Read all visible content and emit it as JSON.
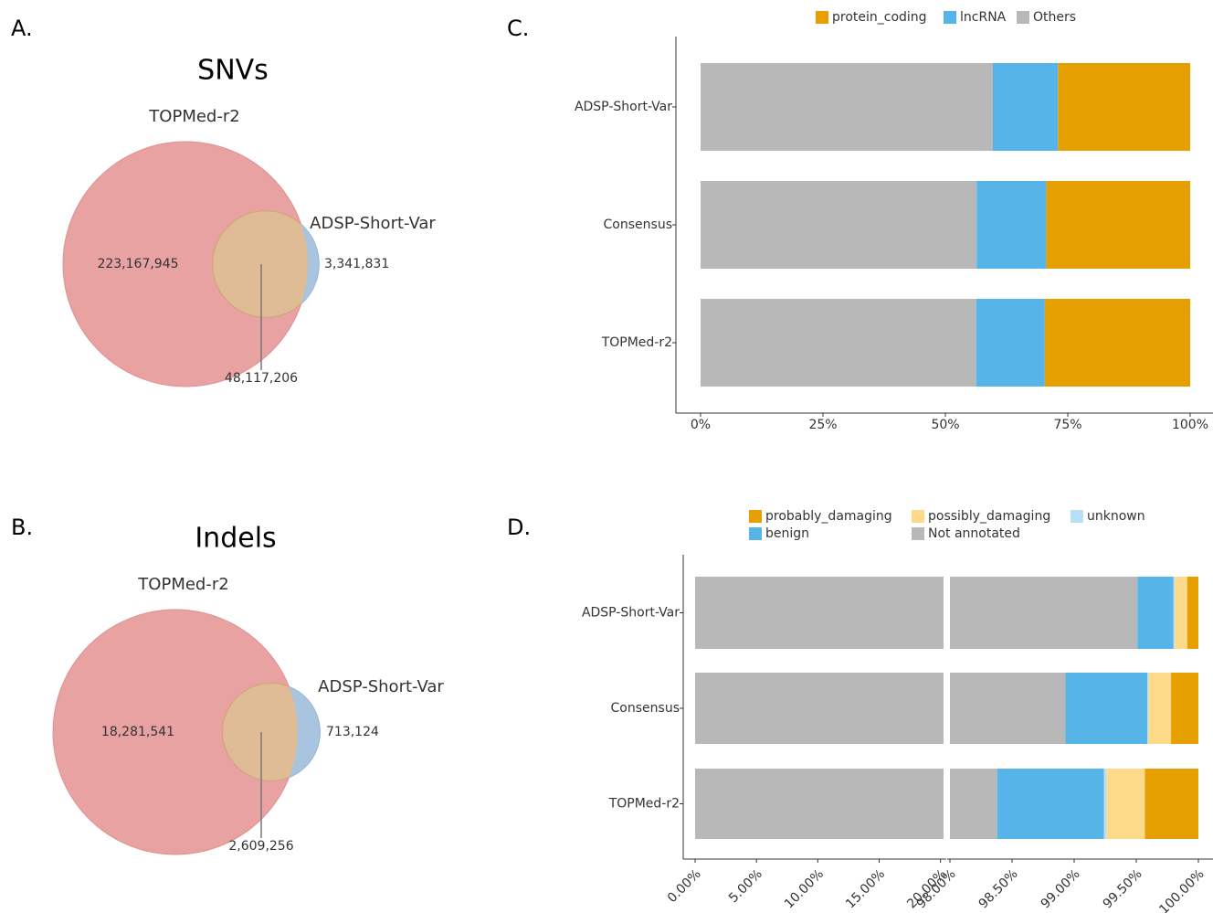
{
  "chart_data": [
    {
      "type": "venn",
      "panel": "A.",
      "title": "SNVs",
      "sets": [
        {
          "name": "TOPMed-r2",
          "color": "#d42a2a",
          "fill": "#e8a2a2"
        },
        {
          "name": "ADSP-Short-Var",
          "color": "#2e75b6",
          "fill": "#a9c4df"
        }
      ],
      "overlap_color": "#dfbb96",
      "values": [
        223167945,
        3341831,
        48117206
      ],
      "value_labels": [
        "223,167,945",
        "3,341,831",
        "48,117,206"
      ]
    },
    {
      "type": "venn",
      "panel": "B.",
      "title": "Indels",
      "sets": [
        {
          "name": "TOPMed-r2",
          "color": "#d42a2a",
          "fill": "#e8a2a2"
        },
        {
          "name": "ADSP-Short-Var",
          "color": "#2e75b6",
          "fill": "#a9c4df"
        }
      ],
      "overlap_color": "#dfbb96",
      "values": [
        18281541,
        713124,
        2609256
      ],
      "value_labels": [
        "18,281,541",
        "713,124",
        "2,609,256"
      ]
    },
    {
      "type": "stacked_barh",
      "panel": "C.",
      "categories": [
        "ADSP-Short-Var",
        "Consensus",
        "TOPMed-r2"
      ],
      "series": [
        {
          "name": "protein_coding",
          "color": "#e69f00",
          "values": [
            27.0,
            29.4,
            29.7
          ]
        },
        {
          "name": "lncRNA",
          "color": "#56b4e9",
          "values": [
            13.3,
            14.2,
            14.0
          ]
        },
        {
          "name": "Others",
          "color": "#b8b8b8",
          "values": [
            59.7,
            56.4,
            56.3
          ]
        }
      ],
      "xlim": [
        0,
        100
      ],
      "xticks": [
        {
          "value": 0,
          "label": "0%"
        },
        {
          "value": 25,
          "label": "25%"
        },
        {
          "value": 50,
          "label": "50%"
        },
        {
          "value": 75,
          "label": "75%"
        },
        {
          "value": 100,
          "label": "100%"
        }
      ]
    },
    {
      "type": "stacked_barh",
      "panel": "D.",
      "categories": [
        "ADSP-Short-Var",
        "Consensus",
        "TOPMed-r2"
      ],
      "series": [
        {
          "name": "probably_damaging",
          "color": "#e69f00",
          "values": [
            0.09,
            0.22,
            0.43
          ]
        },
        {
          "name": "possibly_damaging",
          "color": "#fdd98a",
          "values": [
            0.1,
            0.18,
            0.31
          ]
        },
        {
          "name": "unknown",
          "color": "#b9def5",
          "values": [
            0.01,
            0.01,
            0.02
          ]
        },
        {
          "name": "benign",
          "color": "#56b4e9",
          "values": [
            0.29,
            0.66,
            0.86
          ]
        },
        {
          "name": "Not annotated",
          "color": "#b8b8b8",
          "values": [
            99.51,
            98.93,
            98.38
          ]
        }
      ],
      "xlim": [
        0,
        100
      ],
      "x_break": [
        20.25,
        98
      ],
      "xticks": [
        {
          "value": 0,
          "label": "0.00%"
        },
        {
          "value": 5,
          "label": "5.00%"
        },
        {
          "value": 10,
          "label": "10.00%"
        },
        {
          "value": 15,
          "label": "15.00%"
        },
        {
          "value": 20,
          "label": "20.00%"
        },
        {
          "value": 98,
          "label": "98.00%"
        },
        {
          "value": 98.5,
          "label": "98.50%"
        },
        {
          "value": 99,
          "label": "99.00%"
        },
        {
          "value": 99.5,
          "label": "99.50%"
        },
        {
          "value": 100,
          "label": "100.00%"
        }
      ]
    }
  ]
}
